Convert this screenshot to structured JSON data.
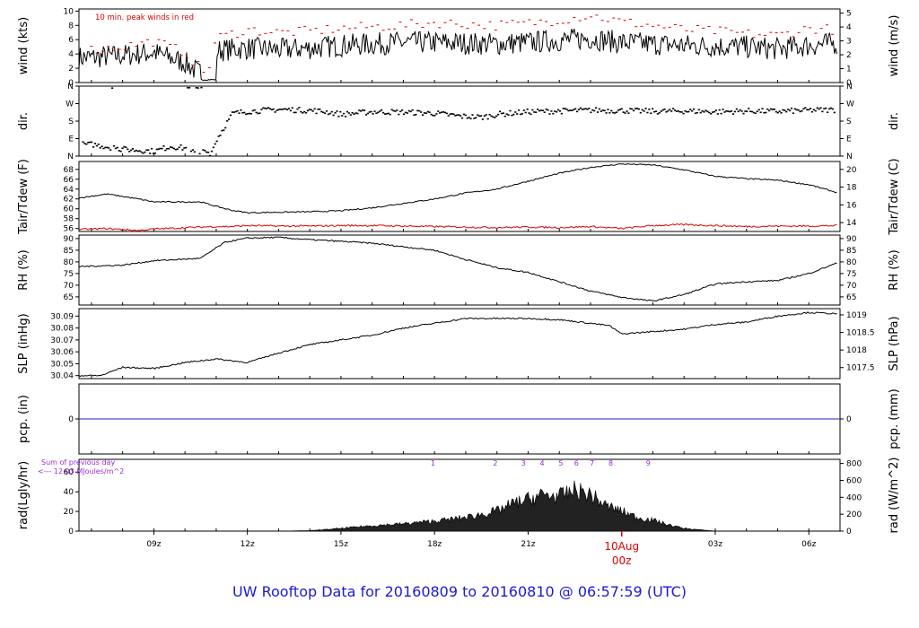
{
  "figure": {
    "title": "UW Rooftop Data for 20160809  to  20160810 @ 06:57:59  (UTC)",
    "date_label": "10Aug",
    "date_time_label": "00z",
    "colors": {
      "title": "#1a1ad6",
      "accent_red": "#e00000",
      "precip": "#2020d0",
      "solar": "#9b2bd6",
      "line": "#000000"
    }
  },
  "chart_data": [
    {
      "id": "wind",
      "type": "line",
      "ylabel": "wind (kts)",
      "ylabel_right": "wind (m/s)",
      "ylim": [
        0,
        10.3
      ],
      "yticks": [
        0,
        2,
        4,
        6,
        8,
        10
      ],
      "yticks_right": [
        0,
        1,
        2,
        3,
        4,
        5
      ],
      "annotation": "10 min. peak winds in red",
      "x": [
        7.0,
        8.0,
        9.0,
        10.0,
        10.7,
        11.0,
        12.0,
        13.0,
        14.0,
        15.0,
        16.0,
        17.0,
        18.0,
        19.0,
        20.0,
        21.0,
        22.0,
        23.0,
        24.0,
        25.0,
        26.0,
        27.0,
        28.0,
        29.0,
        30.0,
        30.9
      ],
      "series": [
        {
          "values": [
            3.5,
            3.8,
            4.2,
            2.8,
            0.5,
            4.5,
            4.8,
            4.6,
            4.8,
            5.2,
            5.4,
            5.6,
            5.6,
            5.5,
            5.4,
            5.6,
            5.9,
            6.2,
            5.6,
            5.4,
            5.2,
            5.1,
            5.0,
            4.7,
            5.2,
            5.5
          ]
        },
        {
          "name": "peak",
          "color": "#e00000",
          "values": [
            4.6,
            5.0,
            5.8,
            4.2,
            1.0,
            6.2,
            7.4,
            7.0,
            7.2,
            7.6,
            7.8,
            8.0,
            8.4,
            8.2,
            8.0,
            8.3,
            8.8,
            9.4,
            8.5,
            8.0,
            7.4,
            7.2,
            6.8,
            6.6,
            7.6,
            7.4
          ]
        }
      ]
    },
    {
      "id": "dir",
      "type": "scatter",
      "ylabel": "dir.",
      "ylabel_right": "dir.",
      "ylim": [
        0,
        360
      ],
      "yticks": [
        "N",
        "E",
        "S",
        "W",
        "N"
      ],
      "x": [
        7.0,
        8.0,
        9.0,
        9.5,
        10.0,
        10.8,
        11.0,
        11.5,
        12.0,
        13.0,
        14.0,
        14.5,
        15.0,
        16.0,
        17.0,
        18.0,
        18.8,
        19.5,
        20.0,
        21.0,
        22.0,
        23.0,
        24.0,
        25.0,
        26.0,
        27.0,
        28.0,
        29.0,
        30.0,
        30.9
      ],
      "values": [
        60,
        35,
        25,
        50,
        40,
        15,
        90,
        220,
        230,
        240,
        235,
        228,
        215,
        228,
        226,
        220,
        205,
        200,
        215,
        228,
        232,
        236,
        234,
        230,
        232,
        228,
        232,
        230,
        236,
        238
      ]
    },
    {
      "id": "temp",
      "type": "line",
      "ylabel": "Tair/Tdew (F)",
      "ylabel_right": "Tair/Tdew (C)",
      "ylim": [
        55.4,
        69.6
      ],
      "yticks": [
        56,
        58,
        60,
        62,
        64,
        66,
        68
      ],
      "yticks_right": [
        14,
        16,
        18,
        20
      ],
      "x": [
        6.6,
        7.5,
        8.5,
        9.0,
        10.5,
        11.0,
        11.5,
        12.0,
        13.0,
        14.0,
        15.0,
        16.0,
        17.0,
        18.0,
        19.0,
        20.0,
        21.0,
        22.0,
        23.0,
        24.0,
        25.0,
        26.0,
        27.0,
        28.0,
        29.0,
        30.0,
        30.9
      ],
      "series": [
        {
          "name": "Tair",
          "color": "#000000",
          "values": [
            62.2,
            63.0,
            62.0,
            61.4,
            61.4,
            60.5,
            59.7,
            59.2,
            59.3,
            59.4,
            59.6,
            60.2,
            61.1,
            62.0,
            63.2,
            64.0,
            65.6,
            67.2,
            68.4,
            69.1,
            68.9,
            67.9,
            66.6,
            66.1,
            65.8,
            64.9,
            63.3
          ]
        },
        {
          "name": "Tdew",
          "color": "#e00000",
          "values": [
            55.8,
            56.0,
            55.6,
            55.9,
            56.3,
            56.4,
            56.4,
            56.6,
            56.5,
            56.5,
            56.6,
            56.6,
            56.5,
            56.4,
            56.3,
            56.2,
            56.3,
            56.2,
            56.4,
            56.0,
            56.6,
            56.8,
            56.6,
            56.4,
            56.5,
            56.5,
            56.6
          ]
        }
      ]
    },
    {
      "id": "rh",
      "type": "line",
      "ylabel": "RH (%)",
      "ylabel_right": "RH (%)",
      "ylim": [
        61.5,
        91.5
      ],
      "yticks": [
        65,
        70,
        75,
        80,
        85,
        90
      ],
      "x": [
        6.6,
        8.0,
        9.0,
        10.5,
        11.0,
        11.3,
        12.0,
        13.0,
        14.0,
        15.0,
        16.0,
        17.0,
        18.0,
        19.0,
        20.0,
        21.0,
        22.0,
        23.0,
        24.0,
        25.0,
        26.0,
        27.0,
        28.0,
        29.0,
        30.0,
        30.9
      ],
      "series": [
        {
          "values": [
            78.0,
            78.6,
            80.5,
            81.5,
            86.0,
            88.5,
            90.2,
            90.5,
            89.5,
            88.8,
            88.0,
            86.5,
            85.0,
            81.0,
            77.5,
            75.5,
            71.5,
            67.5,
            64.8,
            63.2,
            66.0,
            70.5,
            71.5,
            72.0,
            75.0,
            79.5
          ]
        }
      ]
    },
    {
      "id": "slp",
      "type": "line",
      "ylabel": "SLP (inHg)",
      "ylabel_right": "SLP (hPa)",
      "ylim": [
        30.0375,
        30.0963
      ],
      "yticks": [
        30.04,
        30.05,
        30.06,
        30.07,
        30.08,
        30.09
      ],
      "yticks_right": [
        1017.5,
        1018,
        1018.5,
        1019
      ],
      "x": [
        6.6,
        7.3,
        8.0,
        9.0,
        10.0,
        11.0,
        12.0,
        13.0,
        14.0,
        15.0,
        16.0,
        17.0,
        18.0,
        19.0,
        20.0,
        21.0,
        22.0,
        23.0,
        23.6,
        24.0,
        25.0,
        26.0,
        27.0,
        28.0,
        29.0,
        30.0,
        30.9
      ],
      "series": [
        {
          "values": [
            30.04,
            30.04,
            30.047,
            30.046,
            30.051,
            30.054,
            30.051,
            30.059,
            30.066,
            30.07,
            30.074,
            30.08,
            30.084,
            30.088,
            30.088,
            30.088,
            30.087,
            30.084,
            30.082,
            30.075,
            30.077,
            30.079,
            30.083,
            30.085,
            30.09,
            30.093,
            30.092
          ]
        }
      ]
    },
    {
      "id": "pcp",
      "type": "line",
      "ylabel": "pcp. (in)",
      "ylabel_right": "pcp. (mm)",
      "ylim": [
        -1,
        1
      ],
      "yticks": [
        0
      ],
      "yticks_right": [
        0
      ],
      "x": [
        6.6,
        30.9
      ],
      "series": [
        {
          "color": "#2020d0",
          "values": [
            0,
            0
          ]
        }
      ]
    },
    {
      "id": "rad",
      "type": "area",
      "ylabel": "rad(Lgly/hr)",
      "ylabel_right": "rad (W/m^2)",
      "ylim": [
        0,
        73
      ],
      "yticks": [
        0,
        20,
        40,
        60
      ],
      "yticks_right": [
        0,
        200,
        400,
        600,
        800
      ],
      "annotation_lines": [
        "Sum of previous day",
        "<--- 12.03 MJoules/m^2"
      ],
      "hour_markers": [
        {
          "label": "1",
          "x": 17.95
        },
        {
          "label": "2",
          "x": 19.95
        },
        {
          "label": "3",
          "x": 20.85
        },
        {
          "label": "4",
          "x": 21.45
        },
        {
          "label": "5",
          "x": 22.05
        },
        {
          "label": "6",
          "x": 22.55
        },
        {
          "label": "7",
          "x": 23.05
        },
        {
          "label": "8",
          "x": 23.65
        },
        {
          "label": "9",
          "x": 24.85
        }
      ],
      "x": [
        6.6,
        13.0,
        14.0,
        15.0,
        16.0,
        17.0,
        18.0,
        19.0,
        20.0,
        20.5,
        21.0,
        21.5,
        22.0,
        22.5,
        23.0,
        23.5,
        24.0,
        24.5,
        25.0,
        25.5,
        26.0,
        27.0,
        30.9
      ],
      "series": [
        {
          "values": [
            0,
            0,
            0.5,
            3,
            6,
            8,
            11,
            15,
            22,
            30,
            35,
            40,
            38,
            45,
            40,
            28,
            22,
            15,
            12,
            7,
            3,
            0,
            0
          ]
        }
      ]
    }
  ],
  "x_axis": {
    "range": [
      6.6,
      31.0
    ],
    "ticks": [
      {
        "x": 9,
        "label": "09z"
      },
      {
        "x": 12,
        "label": "12z"
      },
      {
        "x": 15,
        "label": "15z"
      },
      {
        "x": 18,
        "label": "18z"
      },
      {
        "x": 21,
        "label": "21z"
      },
      {
        "x": 27,
        "label": "03z"
      },
      {
        "x": 30,
        "label": "06z"
      }
    ],
    "minor_ticks": [
      7,
      8,
      10,
      11,
      13,
      14,
      16,
      17,
      19,
      20,
      22,
      23,
      25,
      26,
      28,
      29
    ],
    "highlight_tick": {
      "x": 24
    }
  }
}
